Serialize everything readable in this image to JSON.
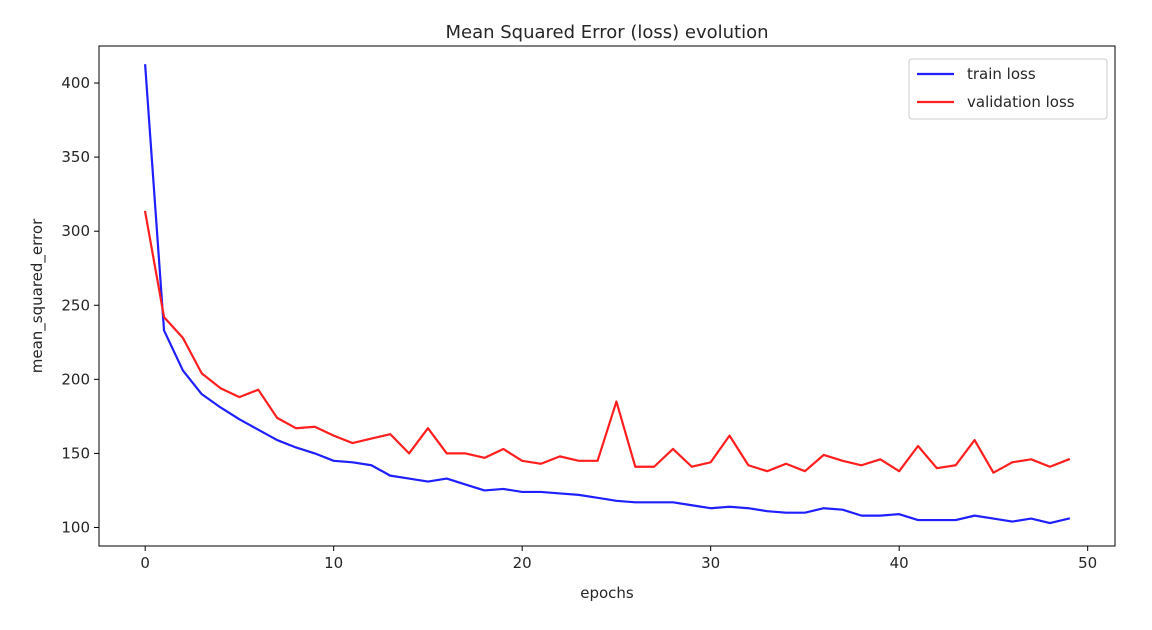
{
  "chart_data": {
    "type": "line",
    "title": "Mean Squared Error (loss) evolution",
    "xlabel": "epochs",
    "ylabel": "mean_squared_error",
    "xlim": [
      -2.45,
      51.45
    ],
    "ylim": [
      87.5,
      425
    ],
    "xticks": [
      0,
      10,
      20,
      30,
      40,
      50
    ],
    "yticks": [
      100,
      150,
      200,
      250,
      300,
      350,
      400
    ],
    "grid": false,
    "legend_position": "top-right",
    "x": [
      0,
      1,
      2,
      3,
      4,
      5,
      6,
      7,
      8,
      9,
      10,
      11,
      12,
      13,
      14,
      15,
      16,
      17,
      18,
      19,
      20,
      21,
      22,
      23,
      24,
      25,
      26,
      27,
      28,
      29,
      30,
      31,
      32,
      33,
      34,
      35,
      36,
      37,
      38,
      39,
      40,
      41,
      42,
      43,
      44,
      45,
      46,
      47,
      48,
      49
    ],
    "series": [
      {
        "name": "train loss",
        "color": "#1f1fff",
        "values": [
          412,
          233,
          206,
          190,
          181,
          173,
          166,
          159,
          154,
          150,
          145,
          144,
          142,
          135,
          133,
          131,
          133,
          129,
          125,
          126,
          124,
          124,
          123,
          122,
          120,
          118,
          117,
          117,
          117,
          115,
          113,
          114,
          113,
          111,
          110,
          110,
          113,
          112,
          108,
          108,
          109,
          105,
          105,
          105,
          108,
          106,
          104,
          106,
          103,
          106
        ]
      },
      {
        "name": "validation loss",
        "color": "#ff1f1f",
        "values": [
          313,
          242,
          228,
          204,
          194,
          188,
          193,
          174,
          167,
          168,
          162,
          157,
          160,
          163,
          150,
          167,
          150,
          150,
          147,
          153,
          145,
          143,
          148,
          145,
          145,
          185,
          141,
          141,
          153,
          141,
          144,
          162,
          142,
          138,
          143,
          138,
          149,
          145,
          142,
          146,
          138,
          155,
          140,
          142,
          159,
          137,
          144,
          146,
          141,
          146
        ]
      }
    ]
  }
}
